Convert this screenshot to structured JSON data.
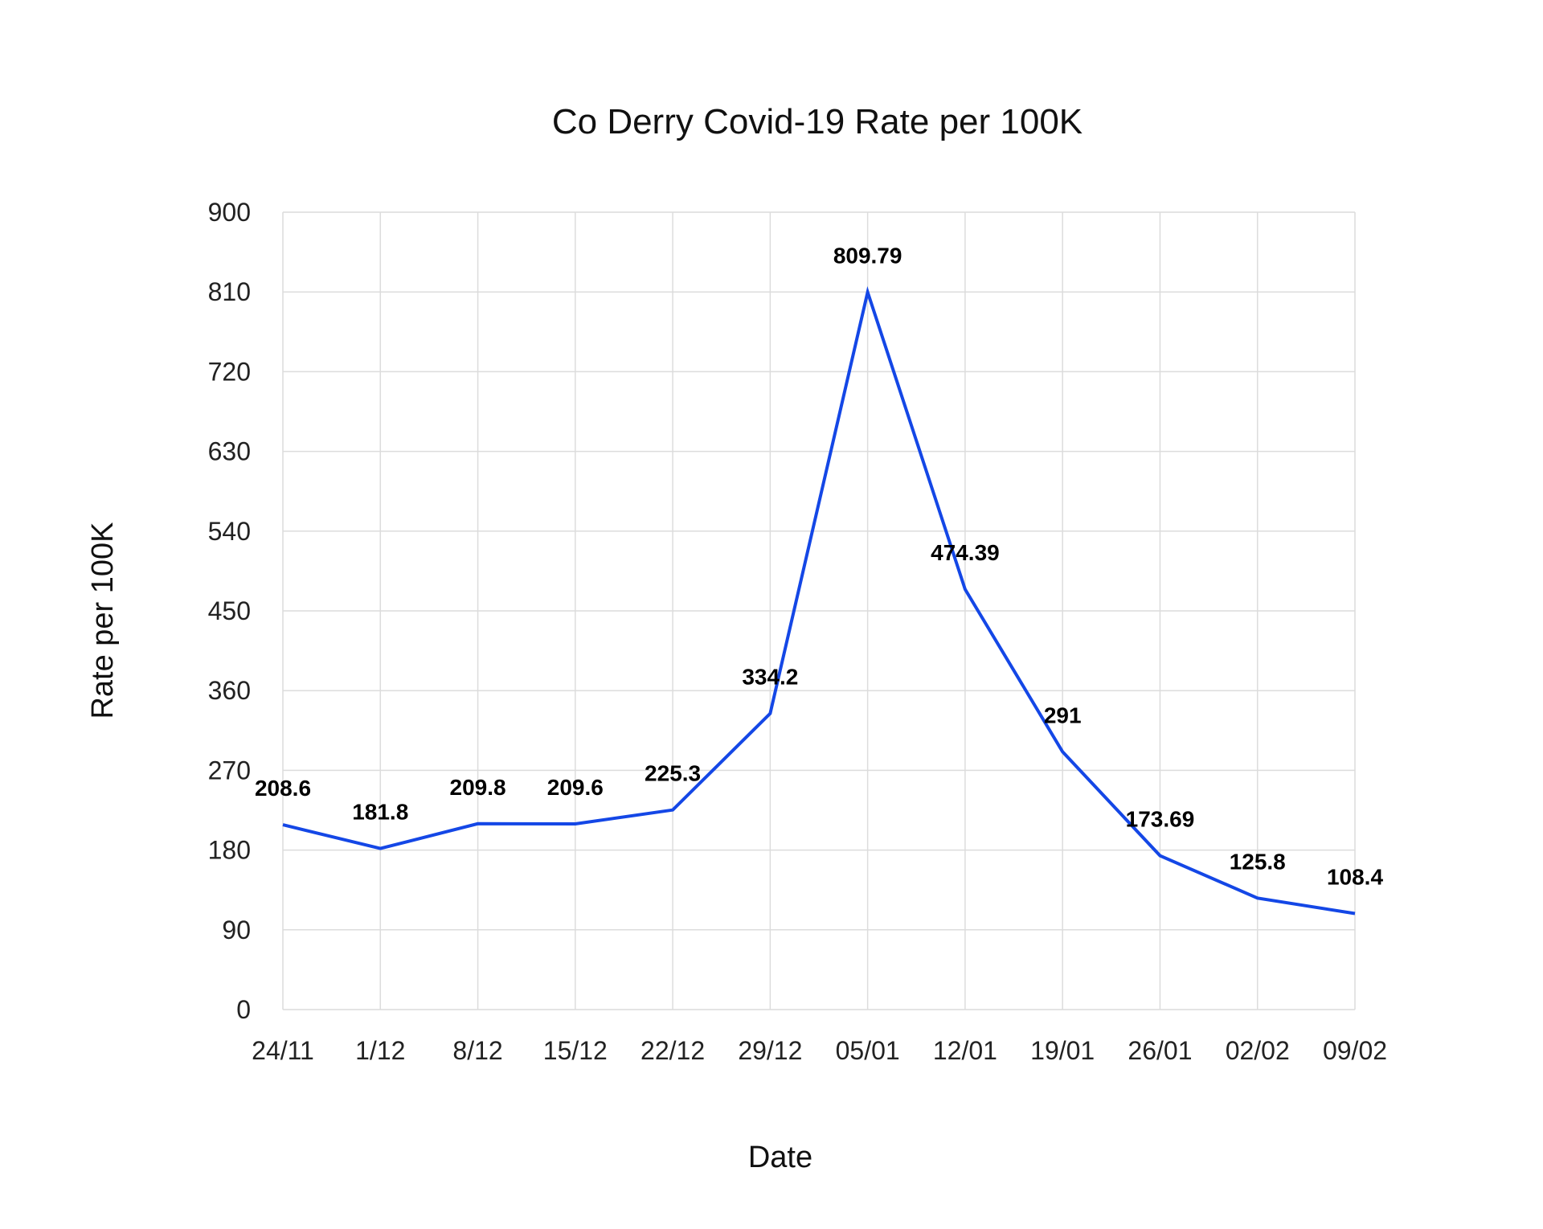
{
  "chart_data": {
    "type": "line",
    "title": "Co Derry Covid-19 Rate per 100K",
    "xlabel": "Date",
    "ylabel": "Rate per 100K",
    "categories": [
      "24/11",
      "1/12",
      "8/12",
      "15/12",
      "22/12",
      "29/12",
      "05/01",
      "12/01",
      "19/01",
      "26/01",
      "02/02",
      "09/02"
    ],
    "series": [
      {
        "values": [
          208.6,
          181.8,
          209.8,
          209.6,
          225.3,
          334.2,
          809.79,
          474.39,
          291,
          173.69,
          125.8,
          108.4
        ],
        "labels": [
          "208.6",
          "181.8",
          "209.8",
          "209.6",
          "225.3",
          "334.2",
          "809.79",
          "474.39",
          "291",
          "173.69",
          "125.8",
          "108.4"
        ],
        "color": "#1447e6"
      }
    ],
    "ylim": [
      0,
      900
    ],
    "yticks": [
      "0",
      "90",
      "180",
      "270",
      "360",
      "450",
      "540",
      "630",
      "720",
      "810",
      "900"
    ],
    "grid": true,
    "legend": "none"
  }
}
